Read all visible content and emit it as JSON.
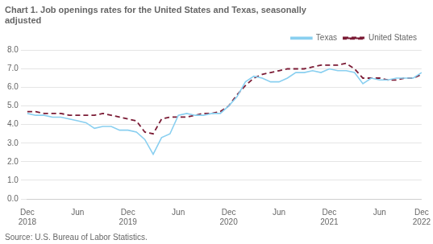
{
  "chart_data": {
    "type": "line",
    "title": "Chart 1. Job openings rates for the United States and Texas, seasonally\nadjusted",
    "annotations": [
      "Source: U.S. Bureau of Labor Statistics."
    ],
    "categories": [
      "Dec\n2018",
      null,
      null,
      null,
      null,
      null,
      "Jun",
      null,
      null,
      null,
      null,
      null,
      "Dec\n2019",
      null,
      null,
      null,
      null,
      null,
      "Jun",
      null,
      null,
      null,
      null,
      null,
      "Dec\n2020",
      null,
      null,
      null,
      null,
      null,
      "Jun",
      null,
      null,
      null,
      null,
      null,
      "Dec\n2021",
      null,
      null,
      null,
      null,
      null,
      "Jun",
      null,
      null,
      null,
      null,
      "Dec\n2022"
    ],
    "series": [
      {
        "name": "Texas",
        "color": "#89CFF0",
        "line_style": "solid",
        "values": [
          4.6,
          4.5,
          4.5,
          4.4,
          4.4,
          4.3,
          4.2,
          4.1,
          3.8,
          3.9,
          3.9,
          3.7,
          3.7,
          3.6,
          3.2,
          2.4,
          3.3,
          3.5,
          4.5,
          4.6,
          4.5,
          4.5,
          4.6,
          4.6,
          5.0,
          5.5,
          6.3,
          6.6,
          6.5,
          6.3,
          6.3,
          6.5,
          6.8,
          6.8,
          6.9,
          6.8,
          7.0,
          6.9,
          6.9,
          6.8,
          6.2,
          6.5,
          6.4,
          6.4,
          6.5,
          6.5,
          6.5,
          6.8
        ]
      },
      {
        "name": "United States",
        "color": "#7B1B35",
        "line_style": "dashed",
        "values": [
          4.7,
          4.7,
          4.6,
          4.6,
          4.6,
          4.5,
          4.5,
          4.5,
          4.5,
          4.6,
          4.5,
          4.4,
          4.3,
          4.2,
          3.6,
          3.5,
          4.3,
          4.4,
          4.4,
          4.4,
          4.5,
          4.6,
          4.6,
          4.7,
          5.0,
          5.6,
          6.1,
          6.5,
          6.7,
          6.8,
          6.9,
          7.0,
          7.0,
          7.0,
          7.1,
          7.2,
          7.2,
          7.2,
          7.3,
          7.0,
          6.5,
          6.5,
          6.5,
          6.4,
          6.4,
          6.5,
          6.5,
          6.7
        ]
      }
    ],
    "ylim": [
      0.0,
      8.0
    ],
    "yticks": [
      {
        "value": 0,
        "label": "0.0"
      },
      {
        "value": 1,
        "label": "1.0"
      },
      {
        "value": 2,
        "label": "2.0"
      },
      {
        "value": 3,
        "label": "3.0"
      },
      {
        "value": 4,
        "label": "4.0"
      },
      {
        "value": 5,
        "label": "5.0"
      },
      {
        "value": 6,
        "label": "6.0"
      },
      {
        "value": 7,
        "label": "7.0"
      },
      {
        "value": 8,
        "label": "8.0"
      }
    ],
    "grid": "y",
    "legend": "top"
  }
}
